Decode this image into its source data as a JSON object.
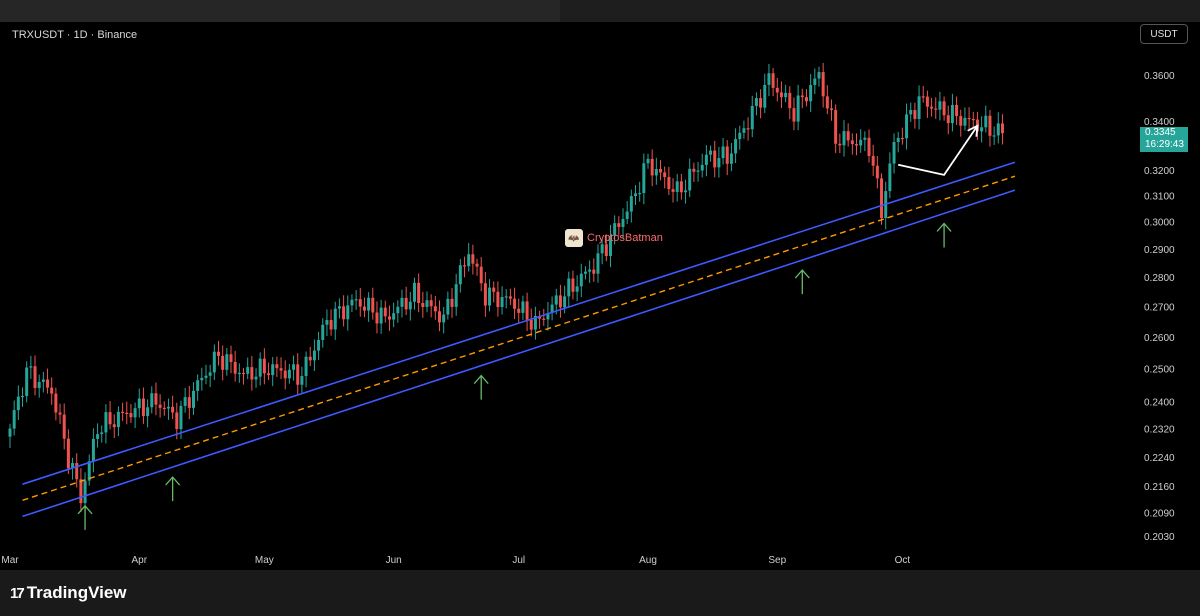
{
  "header": {
    "symbol": "TRXUSDT · 1D · Binance",
    "currency": "USDT"
  },
  "price_tag": {
    "price": "0.3345",
    "countdown": "16:29:43"
  },
  "watermark": {
    "text": "CryptosBatman"
  },
  "footer": {
    "logo_text": "TradingView"
  },
  "colors": {
    "up": "#26a69a",
    "down": "#ef5350",
    "channel": "#3d5afe",
    "midline": "#ff9800",
    "arrows": "#66bb6a",
    "projection": "#ffffff"
  },
  "chart_data": {
    "type": "candlestick",
    "title": "TRXUSDT · 1D · Binance",
    "x_labels": [
      "Mar",
      "Apr",
      "May",
      "Jun",
      "Jul",
      "Aug",
      "Sep",
      "Oct"
    ],
    "y_ticks": [
      "0.3600",
      "0.3400",
      "0.3200",
      "0.3100",
      "0.3000",
      "0.2900",
      "0.2800",
      "0.2700",
      "0.2600",
      "0.2500",
      "0.2400",
      "0.2320",
      "0.2240",
      "0.2160",
      "0.2090",
      "0.2030"
    ],
    "last_price": 0.3345,
    "log_scale": true,
    "grid": false,
    "close_anchors": [
      [
        0,
        0.232
      ],
      [
        4,
        0.249
      ],
      [
        10,
        0.243
      ],
      [
        14,
        0.224
      ],
      [
        17,
        0.213
      ],
      [
        21,
        0.232
      ],
      [
        27,
        0.236
      ],
      [
        35,
        0.24
      ],
      [
        40,
        0.235
      ],
      [
        45,
        0.245
      ],
      [
        50,
        0.254
      ],
      [
        56,
        0.248
      ],
      [
        62,
        0.25
      ],
      [
        70,
        0.248
      ],
      [
        76,
        0.265
      ],
      [
        83,
        0.272
      ],
      [
        90,
        0.266
      ],
      [
        97,
        0.274
      ],
      [
        104,
        0.266
      ],
      [
        110,
        0.289
      ],
      [
        114,
        0.274
      ],
      [
        120,
        0.272
      ],
      [
        126,
        0.264
      ],
      [
        130,
        0.27
      ],
      [
        140,
        0.284
      ],
      [
        149,
        0.307
      ],
      [
        153,
        0.323
      ],
      [
        160,
        0.311
      ],
      [
        167,
        0.325
      ],
      [
        172,
        0.325
      ],
      [
        177,
        0.34
      ],
      [
        182,
        0.358
      ],
      [
        188,
        0.344
      ],
      [
        194,
        0.36
      ],
      [
        198,
        0.333
      ],
      [
        206,
        0.33
      ],
      [
        209,
        0.304
      ],
      [
        212,
        0.33
      ],
      [
        218,
        0.349
      ],
      [
        225,
        0.343
      ],
      [
        233,
        0.338
      ],
      [
        238,
        0.335
      ]
    ],
    "channel": {
      "upper": [
        [
          "2025-03-04",
          0.2165
        ],
        [
          "2025-10-28",
          0.323
        ]
      ],
      "lower": [
        [
          "2025-03-04",
          0.208
        ],
        [
          "2025-10-28",
          0.312
        ]
      ]
    },
    "touch_points": [
      "2025-03-19",
      "2025-04-09",
      "2025-06-22",
      "2025-09-07",
      "2025-10-11"
    ],
    "projection": [
      [
        "2025-09-30",
        0.322
      ],
      [
        "2025-10-11",
        0.318
      ],
      [
        "2025-10-19",
        0.338
      ]
    ]
  }
}
